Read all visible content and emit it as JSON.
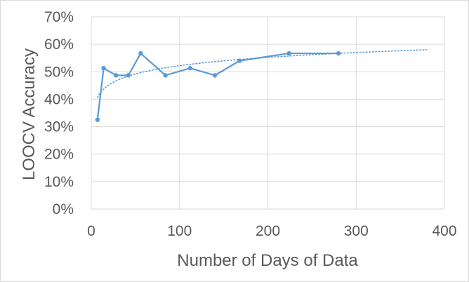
{
  "chart_data": {
    "type": "line",
    "title": "",
    "xlabel": "Number of Days of Data",
    "ylabel": "LOOCV Accuracy",
    "xlim": [
      0,
      400
    ],
    "ylim": [
      0,
      0.7
    ],
    "xticks": [
      0,
      100,
      200,
      300,
      400
    ],
    "xtick_labels": [
      "0",
      "100",
      "200",
      "300",
      "400"
    ],
    "yticks": [
      0,
      0.1,
      0.2,
      0.3,
      0.4,
      0.5,
      0.6,
      0.7
    ],
    "ytick_labels": [
      "0%",
      "10%",
      "20%",
      "30%",
      "40%",
      "50%",
      "60%",
      "70%"
    ],
    "grid": true,
    "legend": "none",
    "series": [
      {
        "x": [
          7,
          14,
          28,
          42,
          56,
          84,
          112,
          140,
          168,
          224,
          280
        ],
        "y": [
          0.325,
          0.513,
          0.487,
          0.487,
          0.567,
          0.487,
          0.513,
          0.487,
          0.54,
          0.567,
          0.567
        ],
        "color": "#5b9bd5"
      }
    ],
    "trendline": {
      "type": "logarithmic",
      "x_range": [
        7,
        380
      ],
      "color": "#5b9bd5",
      "style": "dotted",
      "points": [
        [
          7,
          0.405
        ],
        [
          28,
          0.47
        ],
        [
          100,
          0.52
        ],
        [
          200,
          0.553
        ],
        [
          380,
          0.58
        ]
      ]
    }
  }
}
